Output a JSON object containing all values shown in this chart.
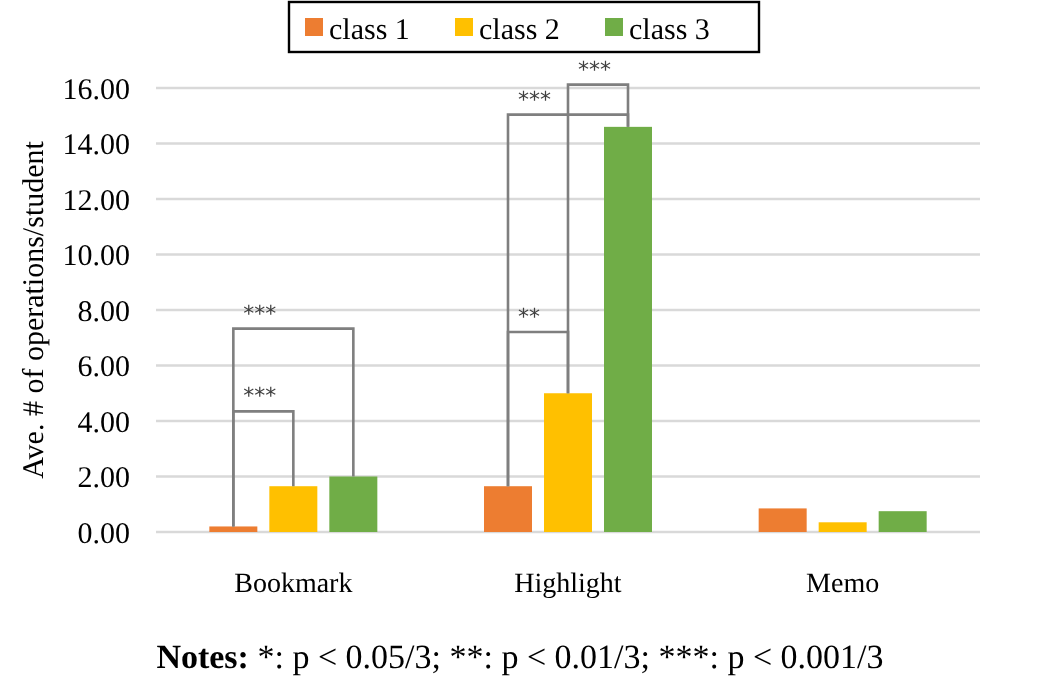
{
  "chart_data": {
    "type": "bar",
    "ylabel": "Ave. # of operations/student",
    "categories": [
      "Bookmark",
      "Highlight",
      "Memo"
    ],
    "series": [
      {
        "name": "class 1",
        "color": "#ed7d31",
        "values": [
          0.2,
          1.65,
          0.85
        ]
      },
      {
        "name": "class 2",
        "color": "#ffc000",
        "values": [
          1.65,
          5.0,
          0.35
        ]
      },
      {
        "name": "class 3",
        "color": "#70ad47",
        "values": [
          2.0,
          14.6,
          0.75
        ]
      }
    ],
    "ylim": [
      0,
      16
    ],
    "yticks": [
      {
        "value": 0,
        "label": "0.00"
      },
      {
        "value": 2,
        "label": "2.00"
      },
      {
        "value": 4,
        "label": "4.00"
      },
      {
        "value": 6,
        "label": "6.00"
      },
      {
        "value": 8,
        "label": "8.00"
      },
      {
        "value": 10,
        "label": "10.00"
      },
      {
        "value": 12,
        "label": "12.00"
      },
      {
        "value": 14,
        "label": "14.00"
      },
      {
        "value": 16,
        "label": "16.00"
      }
    ],
    "grid": "y",
    "legend": "top",
    "annotations": [
      "***",
      "***",
      "**",
      "***",
      "***",
      "Notes: *: p < 0.05/3; **: p < 0.01/3; ***: p < 0.001/3"
    ]
  }
}
